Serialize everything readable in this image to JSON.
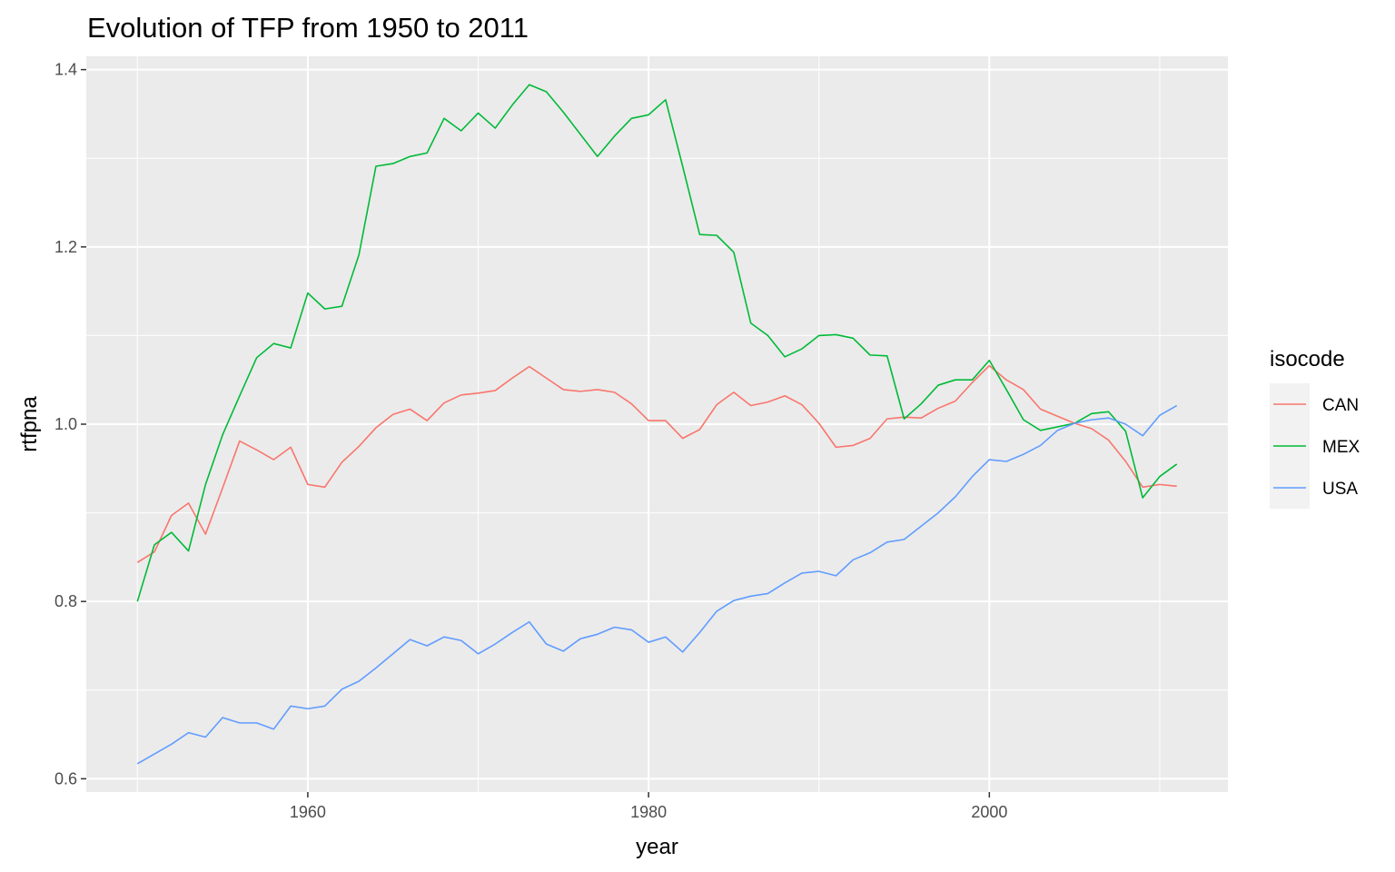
{
  "chart_data": {
    "type": "line",
    "title": "Evolution of TFP from 1950 to 2011",
    "xlabel": "year",
    "ylabel": "rtfpna",
    "xlim": [
      1947,
      2014
    ],
    "ylim": [
      0.585,
      1.415
    ],
    "x_ticks": [
      1960,
      1980,
      2000
    ],
    "y_ticks": [
      0.6,
      0.8,
      1.0,
      1.2,
      1.4
    ],
    "x_tick_labels": [
      "1960",
      "1980",
      "2000"
    ],
    "y_tick_labels": [
      "0.6",
      "0.8",
      "1.0",
      "1.2",
      "1.4"
    ],
    "grid": true,
    "background": "#ebebeb",
    "legend": {
      "title": "isocode",
      "position": "right"
    },
    "x": [
      1950,
      1951,
      1952,
      1953,
      1954,
      1955,
      1956,
      1957,
      1958,
      1959,
      1960,
      1961,
      1962,
      1963,
      1964,
      1965,
      1966,
      1967,
      1968,
      1969,
      1970,
      1971,
      1972,
      1973,
      1974,
      1975,
      1976,
      1977,
      1978,
      1979,
      1980,
      1981,
      1982,
      1983,
      1984,
      1985,
      1986,
      1987,
      1988,
      1989,
      1990,
      1991,
      1992,
      1993,
      1994,
      1995,
      1996,
      1997,
      1998,
      1999,
      2000,
      2001,
      2002,
      2003,
      2004,
      2005,
      2006,
      2007,
      2008,
      2009,
      2010,
      2011
    ],
    "series": [
      {
        "name": "CAN",
        "color": "#F8766D",
        "values": [
          0.844,
          0.856,
          0.897,
          0.911,
          0.876,
          0.928,
          0.981,
          0.971,
          0.96,
          0.974,
          0.932,
          0.929,
          0.957,
          0.975,
          0.996,
          1.011,
          1.017,
          1.004,
          1.024,
          1.033,
          1.035,
          1.038,
          1.052,
          1.065,
          1.052,
          1.039,
          1.037,
          1.039,
          1.036,
          1.023,
          1.004,
          1.004,
          0.984,
          0.994,
          1.022,
          1.036,
          1.021,
          1.025,
          1.032,
          1.022,
          1.001,
          0.974,
          0.976,
          0.984,
          1.006,
          1.008,
          1.007,
          1.018,
          1.026,
          1.047,
          1.066,
          1.05,
          1.039,
          1.017,
          1.009,
          1.001,
          0.995,
          0.982,
          0.958,
          0.929,
          0.932,
          0.93
        ]
      },
      {
        "name": "MEX",
        "color": "#00BA38",
        "values": [
          0.8,
          0.864,
          0.878,
          0.857,
          0.932,
          0.988,
          1.032,
          1.075,
          1.091,
          1.086,
          1.148,
          1.13,
          1.133,
          1.191,
          1.291,
          1.294,
          1.302,
          1.306,
          1.345,
          1.331,
          1.351,
          1.334,
          1.36,
          1.383,
          1.375,
          1.352,
          1.327,
          1.302,
          1.325,
          1.345,
          1.349,
          1.366,
          1.291,
          1.214,
          1.213,
          1.194,
          1.114,
          1.1,
          1.076,
          1.085,
          1.1,
          1.101,
          1.097,
          1.078,
          1.077,
          1.006,
          1.023,
          1.044,
          1.05,
          1.05,
          1.072,
          1.039,
          1.005,
          0.993,
          0.997,
          1.001,
          1.012,
          1.014,
          0.992,
          0.917,
          0.941,
          0.955
        ]
      },
      {
        "name": "USA",
        "color": "#619CFF",
        "values": [
          0.617,
          0.628,
          0.639,
          0.652,
          0.647,
          0.669,
          0.663,
          0.663,
          0.656,
          0.682,
          0.679,
          0.682,
          0.701,
          0.71,
          0.725,
          0.741,
          0.757,
          0.75,
          0.76,
          0.756,
          0.741,
          0.752,
          0.765,
          0.777,
          0.752,
          0.744,
          0.758,
          0.763,
          0.771,
          0.768,
          0.754,
          0.76,
          0.743,
          0.765,
          0.789,
          0.801,
          0.806,
          0.809,
          0.821,
          0.832,
          0.834,
          0.829,
          0.847,
          0.855,
          0.867,
          0.87,
          0.885,
          0.9,
          0.918,
          0.941,
          0.96,
          0.958,
          0.966,
          0.976,
          0.993,
          1.001,
          1.005,
          1.007,
          1.0,
          0.987,
          1.01,
          1.021
        ]
      }
    ]
  }
}
